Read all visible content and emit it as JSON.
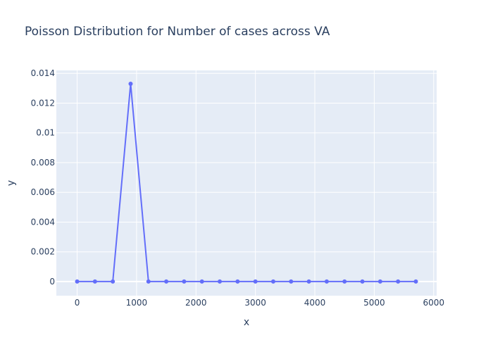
{
  "chart_data": {
    "type": "line",
    "title": "Poisson Distribution for Number of cases across VA",
    "xlabel": "x",
    "ylabel": "y",
    "xlim": [
      -350,
      6050
    ],
    "ylim": [
      -0.00095,
      0.0142
    ],
    "x_ticks": [
      0,
      1000,
      2000,
      3000,
      4000,
      5000,
      6000
    ],
    "x_tick_labels": [
      "0",
      "1000",
      "2000",
      "3000",
      "4000",
      "5000",
      "6000"
    ],
    "y_ticks": [
      0,
      0.002,
      0.004,
      0.006,
      0.008,
      0.01,
      0.012,
      0.014
    ],
    "y_tick_labels": [
      "0",
      "0.002",
      "0.004",
      "0.006",
      "0.008",
      "0.01",
      "0.012",
      "0.014"
    ],
    "grid": true,
    "series": [
      {
        "color": "#636efa",
        "mode": "lines+markers",
        "x": [
          0,
          300,
          600,
          900,
          1200,
          1500,
          1800,
          2100,
          2400,
          2700,
          3000,
          3300,
          3600,
          3900,
          4200,
          4500,
          4800,
          5100,
          5400,
          5700
        ],
        "y": [
          0,
          0,
          0,
          0.0133,
          0,
          0,
          0,
          0,
          0,
          0,
          0,
          0,
          0,
          0,
          0,
          0,
          0,
          0,
          0,
          0
        ]
      }
    ],
    "colors": {
      "plot_bg": "#e5ecf6",
      "grid": "#ffffff",
      "text": "#2a3f5f"
    }
  }
}
